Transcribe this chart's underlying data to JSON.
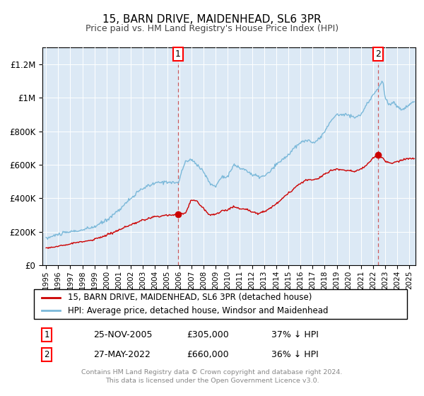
{
  "title": "15, BARN DRIVE, MAIDENHEAD, SL6 3PR",
  "subtitle": "Price paid vs. HM Land Registry's House Price Index (HPI)",
  "ylim": [
    0,
    1300000
  ],
  "yticks": [
    0,
    200000,
    400000,
    600000,
    800000,
    1000000,
    1200000
  ],
  "plot_bg": "#dce9f5",
  "red_line_color": "#cc0000",
  "blue_line_color": "#7ab8d9",
  "marker1_date": 2005.9,
  "marker1_price": 305000,
  "marker2_date": 2022.42,
  "marker2_price": 660000,
  "legend_label1": "15, BARN DRIVE, MAIDENHEAD, SL6 3PR (detached house)",
  "legend_label2": "HPI: Average price, detached house, Windsor and Maidenhead",
  "note1_date": "25-NOV-2005",
  "note1_price": "£305,000",
  "note1_hpi": "37% ↓ HPI",
  "note2_date": "27-MAY-2022",
  "note2_price": "£660,000",
  "note2_hpi": "36% ↓ HPI",
  "footer": "Contains HM Land Registry data © Crown copyright and database right 2024.\nThis data is licensed under the Open Government Licence v3.0.",
  "xmin": 1994.7,
  "xmax": 2025.5
}
